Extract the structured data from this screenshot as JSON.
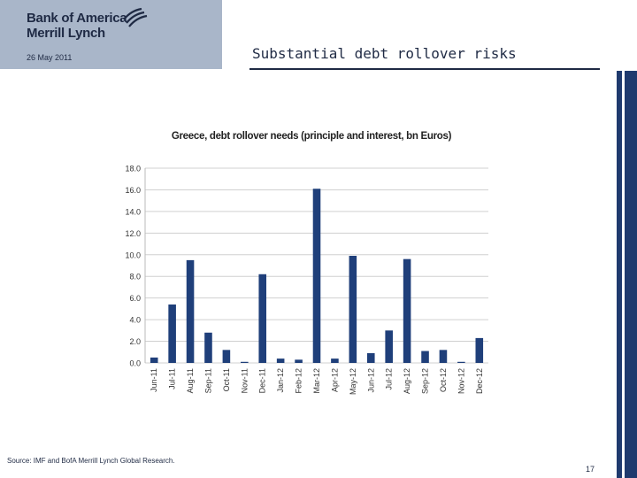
{
  "header": {
    "brand_line1": "Bank of America",
    "brand_line2": "Merrill Lynch",
    "date": "26 May 2011",
    "title": "Substantial debt rollover risks"
  },
  "footer": {
    "source": "Source: IMF and BofA Merrill Lynch Global Research.",
    "page_number": "17"
  },
  "colors": {
    "bar": "#1f3f7a",
    "logo_bg": "#a9b6c9",
    "brand_text": "#1f2a44",
    "side_bar": "#1f3a6e"
  },
  "chart_data": {
    "type": "bar",
    "title": "Greece, debt rollover needs (principle and interest, bn Euros)",
    "categories": [
      "Jun-11",
      "Jul-11",
      "Aug-11",
      "Sep-11",
      "Oct-11",
      "Nov-11",
      "Dec-11",
      "Jan-12",
      "Feb-12",
      "Mar-12",
      "Apr-12",
      "May-12",
      "Jun-12",
      "Jul-12",
      "Aug-12",
      "Sep-12",
      "Oct-12",
      "Nov-12",
      "Dec-12"
    ],
    "values": [
      0.5,
      5.4,
      9.5,
      2.8,
      1.2,
      0.1,
      8.2,
      0.4,
      0.3,
      16.1,
      0.4,
      9.9,
      0.9,
      3.0,
      9.6,
      1.1,
      1.2,
      0.1,
      2.3
    ],
    "yticks": [
      "0.0",
      "2.0",
      "4.0",
      "6.0",
      "8.0",
      "10.0",
      "12.0",
      "14.0",
      "16.0",
      "18.0"
    ],
    "ylim": [
      0,
      18
    ],
    "grid": true,
    "legend": "none"
  }
}
